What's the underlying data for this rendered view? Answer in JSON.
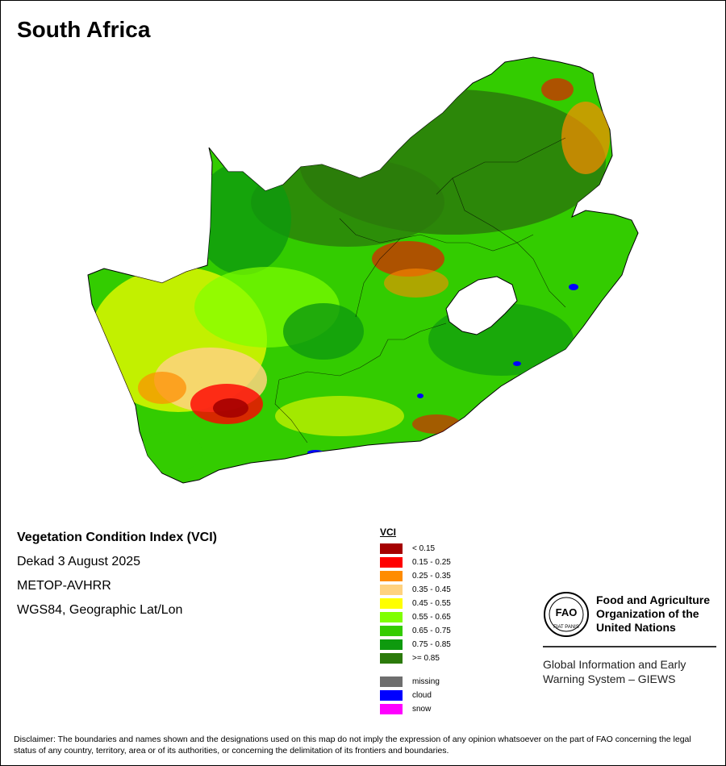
{
  "map": {
    "title": "South Africa",
    "country": "South Africa",
    "embedded_country": "Lesotho (masked)",
    "dominant_conditions": {
      "north_east": ">= 0.85",
      "west_interior": "0.35 - 0.65",
      "south_west_karoo": "< 0.15 - 0.35",
      "east_coast": "0.65 - 0.85"
    }
  },
  "info": {
    "index_title": "Vegetation Condition Index (VCI)",
    "period": "Dekad 3 August 2025",
    "sensor": "METOP-AVHRR",
    "projection": "WGS84, Geographic Lat/Lon"
  },
  "legend": {
    "title": "VCI",
    "classes": [
      {
        "label": "< 0.15",
        "color": "#a50000"
      },
      {
        "label": "0.15 - 0.25",
        "color": "#ff0000"
      },
      {
        "label": "0.25 - 0.35",
        "color": "#ff8c00"
      },
      {
        "label": "0.35 - 0.45",
        "color": "#ffd27f"
      },
      {
        "label": "0.45 - 0.55",
        "color": "#ffff00"
      },
      {
        "label": "0.55 - 0.65",
        "color": "#7fff00"
      },
      {
        "label": "0.65 - 0.75",
        "color": "#33cc00"
      },
      {
        "label": "0.75 - 0.85",
        "color": "#0e9a0e"
      },
      {
        "label": ">= 0.85",
        "color": "#2b7a0b"
      }
    ],
    "extras": [
      {
        "label": "missing",
        "color": "#6e6e6e"
      },
      {
        "label": "cloud",
        "color": "#0000ff"
      },
      {
        "label": "snow",
        "color": "#ff00ff"
      }
    ]
  },
  "organization": {
    "name_lines": [
      "Food and Agriculture",
      "Organization of the",
      "United Nations"
    ],
    "logo_text": "FIAT PANIS",
    "logo_letters": "FAO",
    "system_lines": [
      "Global Information and Early",
      "Warning System – GIEWS"
    ]
  },
  "disclaimer": "Disclaimer: The boundaries and names shown and the designations used on this map do not imply the expression of any opinion whatsoever on the part of FAO concerning the legal status of any country, territory, area or of its authorities, or concerning the delimitation of its frontiers and boundaries."
}
